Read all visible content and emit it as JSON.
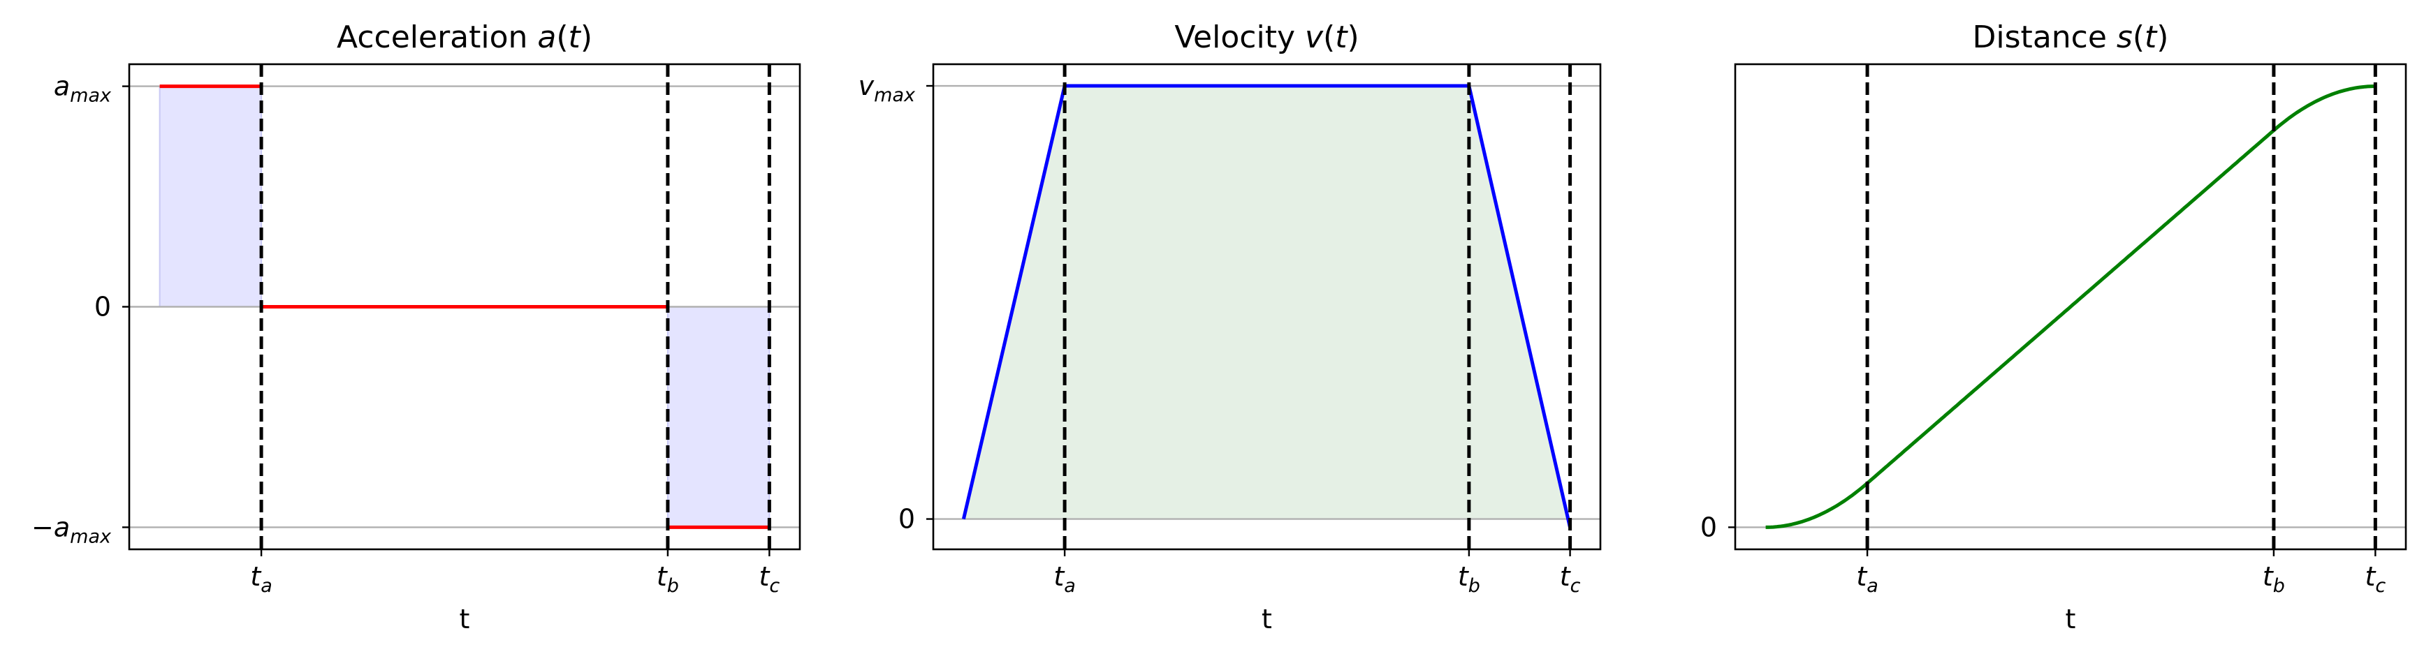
{
  "colors": {
    "acceleration": "#ff0000",
    "velocity": "#0000ff",
    "distance": "#008000",
    "accel_fill": "#e4e4ff",
    "vel_fill": "#e5f0e5",
    "grid": "#b0b0b0"
  },
  "chart_data": [
    {
      "type": "line",
      "title": "Acceleration a(t)",
      "xlabel": "t",
      "x_ticks": [
        {
          "x": 1,
          "label": "t_a"
        },
        {
          "x": 5,
          "label": "t_b"
        },
        {
          "x": 6,
          "label": "t_c"
        }
      ],
      "y_ticks": [
        {
          "y": 1,
          "label": "a_max"
        },
        {
          "y": 0,
          "label": "0"
        },
        {
          "y": -1,
          "label": "−a_max"
        }
      ],
      "grid": "horizontal at y ticks",
      "xlim": [
        -0.3,
        6.3
      ],
      "ylim": [
        -1.1,
        1.1
      ],
      "segments": [
        {
          "x": [
            0,
            1
          ],
          "y": [
            1,
            1
          ]
        },
        {
          "x": [
            1,
            5
          ],
          "y": [
            0,
            0
          ]
        },
        {
          "x": [
            5,
            6
          ],
          "y": [
            -1,
            -1
          ]
        }
      ],
      "filled_regions": [
        {
          "x": [
            0,
            1
          ],
          "y": 1
        },
        {
          "x": [
            5,
            6
          ],
          "y": -1
        }
      ],
      "vertical_dashed_lines": [
        1,
        5,
        6
      ]
    },
    {
      "type": "line",
      "title": "Velocity v(t)",
      "xlabel": "t",
      "x_ticks": [
        {
          "x": 1,
          "label": "t_a"
        },
        {
          "x": 5,
          "label": "t_b"
        },
        {
          "x": 6,
          "label": "t_c"
        }
      ],
      "y_ticks": [
        {
          "y": 1,
          "label": "v_max"
        },
        {
          "y": 0,
          "label": "0"
        }
      ],
      "grid": "horizontal at y ticks",
      "xlim": [
        -0.3,
        6.3
      ],
      "ylim": [
        -0.07,
        1.05
      ],
      "points": {
        "x": [
          0,
          1,
          5,
          6
        ],
        "y": [
          0,
          1,
          1,
          -0.02
        ]
      },
      "filled_area": true,
      "vertical_dashed_lines": [
        1,
        5,
        6
      ]
    },
    {
      "type": "line",
      "title": "Distance s(t)",
      "xlabel": "t",
      "x_ticks": [
        {
          "x": 1,
          "label": "t_a"
        },
        {
          "x": 5,
          "label": "t_b"
        },
        {
          "x": 6,
          "label": "t_c"
        }
      ],
      "y_ticks": [
        {
          "y": 0,
          "label": "0"
        }
      ],
      "grid": "horizontal at y ticks",
      "xlim": [
        -0.3,
        6.3
      ],
      "ylim": [
        -0.05,
        1.05
      ],
      "points": {
        "x": [
          0,
          0.25,
          0.5,
          0.75,
          1,
          2,
          3,
          4,
          5,
          5.25,
          5.5,
          5.75,
          6
        ],
        "y": [
          0,
          0.0063,
          0.025,
          0.056,
          0.1,
          0.3,
          0.5,
          0.7,
          0.9,
          0.944,
          0.975,
          0.994,
          1.0
        ]
      },
      "vertical_dashed_lines": [
        1,
        5,
        6
      ]
    }
  ]
}
